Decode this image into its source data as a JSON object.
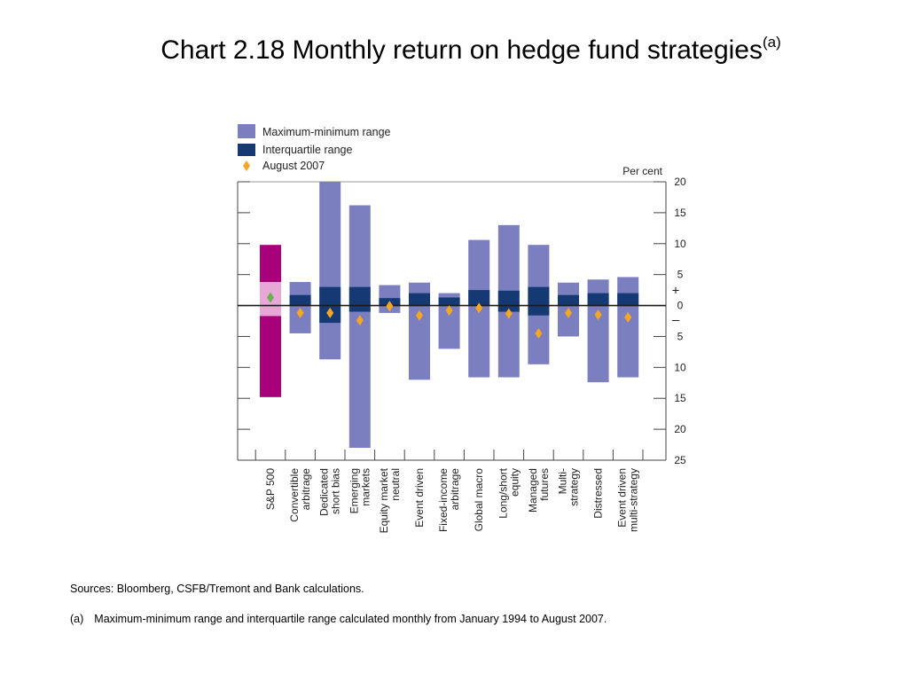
{
  "title": {
    "text": "Chart 2.18  Monthly return on hedge fund strategies",
    "superscript": "(a)"
  },
  "notes": {
    "sources": "Sources:  Bloomberg, CSFB/Tremont and Bank calculations.",
    "footnote_label": "(a)",
    "footnote_text": "Maximum-minimum range and interquartile range calculated monthly from January 1994 to August 2007."
  },
  "chart_data": {
    "type": "bar",
    "unit": "Per cent",
    "ylim": [
      -25,
      20
    ],
    "y_ticks": [
      20,
      15,
      10,
      5,
      0,
      -5,
      -10,
      -15,
      -20,
      -25
    ],
    "y_tick_labels": [
      "20",
      "15",
      "10",
      "5",
      "0",
      "5",
      "10",
      "15",
      "20",
      "25"
    ],
    "sign_labels": {
      "plus": "+",
      "minus": "–"
    },
    "legend": [
      {
        "key": "range",
        "label": "Maximum-minimum range",
        "color": "#7b7fc0"
      },
      {
        "key": "iqr",
        "label": "Interquartile range",
        "color": "#153a73"
      },
      {
        "key": "aug",
        "label": "August 2007",
        "color": "#f5a623"
      }
    ],
    "categories": [
      {
        "lines": [
          "S&P 500"
        ],
        "max": 9.8,
        "min": -14.8,
        "q3": 3.8,
        "q1": -1.7,
        "aug2007": 1.3
      },
      {
        "lines": [
          "Convertible",
          "arbitrage"
        ],
        "max": 3.8,
        "min": -4.5,
        "q3": 1.7,
        "q1": 0,
        "aug2007": -1.2
      },
      {
        "lines": [
          "Dedicated",
          "short bias"
        ],
        "max": 20,
        "min": -8.7,
        "q3": 3.0,
        "q1": -2.8,
        "aug2007": -1.2
      },
      {
        "lines": [
          "Emerging",
          "markets"
        ],
        "max": 16.2,
        "min": -23,
        "q3": 3.0,
        "q1": -1.0,
        "aug2007": -2.4
      },
      {
        "lines": [
          "Equity market",
          "neutral"
        ],
        "max": 3.3,
        "min": -1.2,
        "q3": 1.2,
        "q1": 0,
        "aug2007": -0.1
      },
      {
        "lines": [
          "Event driven"
        ],
        "max": 3.7,
        "min": -12.0,
        "q3": 2.0,
        "q1": 0,
        "aug2007": -1.6
      },
      {
        "lines": [
          "Fixed-income",
          "arbitrage"
        ],
        "max": 2.0,
        "min": -7.0,
        "q3": 1.3,
        "q1": 0,
        "aug2007": -0.8
      },
      {
        "lines": [
          "Global macro"
        ],
        "max": 10.6,
        "min": -11.6,
        "q3": 2.5,
        "q1": 0,
        "aug2007": -0.4
      },
      {
        "lines": [
          "Long/short",
          "equity"
        ],
        "max": 13.0,
        "min": -11.6,
        "q3": 2.4,
        "q1": -1.0,
        "aug2007": -1.3
      },
      {
        "lines": [
          "Managed",
          "futures"
        ],
        "max": 9.8,
        "min": -9.5,
        "q3": 3.0,
        "q1": -1.6,
        "aug2007": -4.5
      },
      {
        "lines": [
          "Multi-",
          "strategy"
        ],
        "max": 3.7,
        "min": -5.0,
        "q3": 1.7,
        "q1": 0,
        "aug2007": -1.2
      },
      {
        "lines": [
          "Distressed"
        ],
        "max": 4.2,
        "min": -12.4,
        "q3": 2.0,
        "q1": 0,
        "aug2007": -1.5
      },
      {
        "lines": [
          "Event driven",
          "multi-strategy"
        ],
        "max": 4.6,
        "min": -11.6,
        "q3": 2.0,
        "q1": 0,
        "aug2007": -1.9
      }
    ],
    "special_colors": {
      "sp500_range": "#a7007a",
      "sp500_iqr": "#e7a8d8",
      "sp500_marker": "#6ab04c",
      "zero_line": "#1a1a1a",
      "axis": "#444444"
    }
  }
}
